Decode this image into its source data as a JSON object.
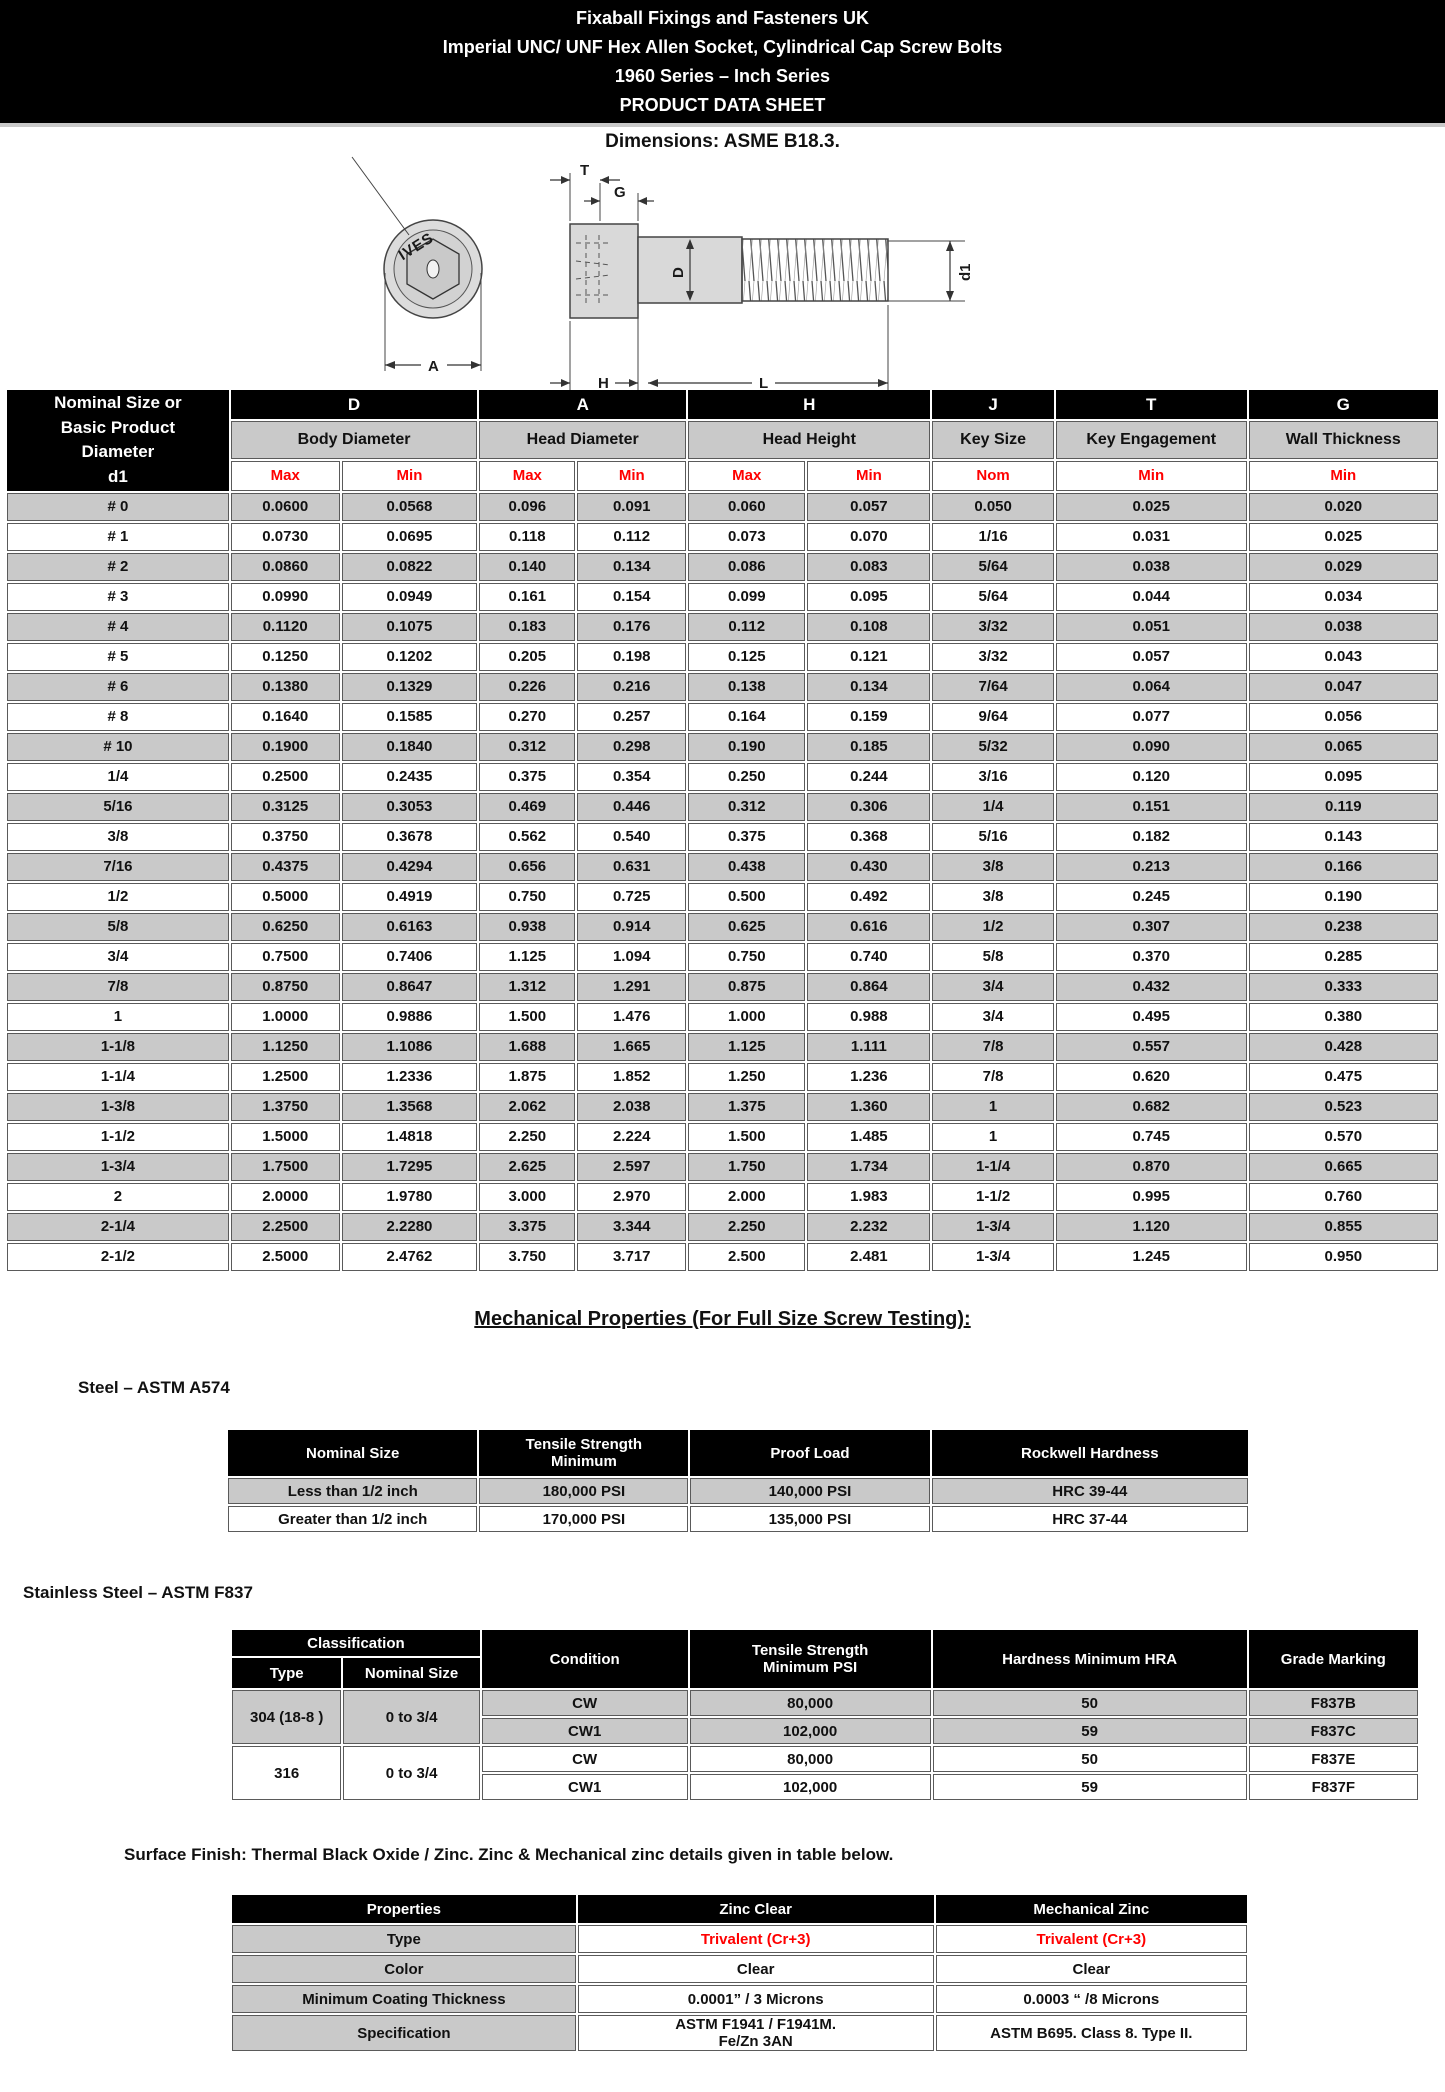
{
  "banner": {
    "line1": "Fixaball Fixings and Fasteners UK",
    "line2": "Imperial UNC/ UNF Hex Allen Socket, Cylindrical Cap Screw Bolts",
    "line3": "1960 Series – Inch Series",
    "line4": "PRODUCT DATA SHEET"
  },
  "dimensions_note": "Dimensions: ASME B18.3.",
  "drawing": {
    "labels": {
      "T": "T",
      "G": "G",
      "A": "A",
      "H": "H",
      "L": "L",
      "D": "D",
      "d1": "d1",
      "stamp": "IVES"
    }
  },
  "main_table": {
    "corner": "Nominal Size or\nBasic Product\nDiameter\nd1",
    "groups": [
      {
        "letter": "D",
        "label": "Body Diameter"
      },
      {
        "letter": "A",
        "label": "Head Diameter"
      },
      {
        "letter": "H",
        "label": "Head Height"
      },
      {
        "letter": "J",
        "label": "Key Size"
      },
      {
        "letter": "T",
        "label": "Key Engagement"
      },
      {
        "letter": "G",
        "label": "Wall Thickness"
      }
    ],
    "subcols": [
      "Max",
      "Min",
      "Max",
      "Min",
      "Max",
      "Min",
      "Nom",
      "Min",
      "Min"
    ],
    "rows": [
      [
        "# 0",
        "0.0600",
        "0.0568",
        "0.096",
        "0.091",
        "0.060",
        "0.057",
        "0.050",
        "0.025",
        "0.020"
      ],
      [
        "# 1",
        "0.0730",
        "0.0695",
        "0.118",
        "0.112",
        "0.073",
        "0.070",
        "1/16",
        "0.031",
        "0.025"
      ],
      [
        "# 2",
        "0.0860",
        "0.0822",
        "0.140",
        "0.134",
        "0.086",
        "0.083",
        "5/64",
        "0.038",
        "0.029"
      ],
      [
        "# 3",
        "0.0990",
        "0.0949",
        "0.161",
        "0.154",
        "0.099",
        "0.095",
        "5/64",
        "0.044",
        "0.034"
      ],
      [
        "# 4",
        "0.1120",
        "0.1075",
        "0.183",
        "0.176",
        "0.112",
        "0.108",
        "3/32",
        "0.051",
        "0.038"
      ],
      [
        "# 5",
        "0.1250",
        "0.1202",
        "0.205",
        "0.198",
        "0.125",
        "0.121",
        "3/32",
        "0.057",
        "0.043"
      ],
      [
        "# 6",
        "0.1380",
        "0.1329",
        "0.226",
        "0.216",
        "0.138",
        "0.134",
        "7/64",
        "0.064",
        "0.047"
      ],
      [
        "# 8",
        "0.1640",
        "0.1585",
        "0.270",
        "0.257",
        "0.164",
        "0.159",
        "9/64",
        "0.077",
        "0.056"
      ],
      [
        "# 10",
        "0.1900",
        "0.1840",
        "0.312",
        "0.298",
        "0.190",
        "0.185",
        "5/32",
        "0.090",
        "0.065"
      ],
      [
        "1/4",
        "0.2500",
        "0.2435",
        "0.375",
        "0.354",
        "0.250",
        "0.244",
        "3/16",
        "0.120",
        "0.095"
      ],
      [
        "5/16",
        "0.3125",
        "0.3053",
        "0.469",
        "0.446",
        "0.312",
        "0.306",
        "1/4",
        "0.151",
        "0.119"
      ],
      [
        "3/8",
        "0.3750",
        "0.3678",
        "0.562",
        "0.540",
        "0.375",
        "0.368",
        "5/16",
        "0.182",
        "0.143"
      ],
      [
        "7/16",
        "0.4375",
        "0.4294",
        "0.656",
        "0.631",
        "0.438",
        "0.430",
        "3/8",
        "0.213",
        "0.166"
      ],
      [
        "1/2",
        "0.5000",
        "0.4919",
        "0.750",
        "0.725",
        "0.500",
        "0.492",
        "3/8",
        "0.245",
        "0.190"
      ],
      [
        "5/8",
        "0.6250",
        "0.6163",
        "0.938",
        "0.914",
        "0.625",
        "0.616",
        "1/2",
        "0.307",
        "0.238"
      ],
      [
        "3/4",
        "0.7500",
        "0.7406",
        "1.125",
        "1.094",
        "0.750",
        "0.740",
        "5/8",
        "0.370",
        "0.285"
      ],
      [
        "7/8",
        "0.8750",
        "0.8647",
        "1.312",
        "1.291",
        "0.875",
        "0.864",
        "3/4",
        "0.432",
        "0.333"
      ],
      [
        "1",
        "1.0000",
        "0.9886",
        "1.500",
        "1.476",
        "1.000",
        "0.988",
        "3/4",
        "0.495",
        "0.380"
      ],
      [
        "1-1/8",
        "1.1250",
        "1.1086",
        "1.688",
        "1.665",
        "1.125",
        "1.111",
        "7/8",
        "0.557",
        "0.428"
      ],
      [
        "1-1/4",
        "1.2500",
        "1.2336",
        "1.875",
        "1.852",
        "1.250",
        "1.236",
        "7/8",
        "0.620",
        "0.475"
      ],
      [
        "1-3/8",
        "1.3750",
        "1.3568",
        "2.062",
        "2.038",
        "1.375",
        "1.360",
        "1",
        "0.682",
        "0.523"
      ],
      [
        "1-1/2",
        "1.5000",
        "1.4818",
        "2.250",
        "2.224",
        "1.500",
        "1.485",
        "1",
        "0.745",
        "0.570"
      ],
      [
        "1-3/4",
        "1.7500",
        "1.7295",
        "2.625",
        "2.597",
        "1.750",
        "1.734",
        "1-1/4",
        "0.870",
        "0.665"
      ],
      [
        "2",
        "2.0000",
        "1.9780",
        "3.000",
        "2.970",
        "2.000",
        "1.983",
        "1-1/2",
        "0.995",
        "0.760"
      ],
      [
        "2-1/4",
        "2.2500",
        "2.2280",
        "3.375",
        "3.344",
        "2.250",
        "2.232",
        "1-3/4",
        "1.120",
        "0.855"
      ],
      [
        "2-1/2",
        "2.5000",
        "2.4762",
        "3.750",
        "3.717",
        "2.500",
        "2.481",
        "1-3/4",
        "1.245",
        "0.950"
      ]
    ]
  },
  "mech_section": {
    "title": "Mechanical Properties (For Full Size Screw Testing):",
    "steel_label": "Steel – ASTM A574",
    "stainless_label": "Stainless Steel – ASTM F837",
    "surface_label": "Surface Finish: Thermal Black Oxide / Zinc. Zinc & Mechanical zinc details given in table below."
  },
  "steel_table": {
    "headers": [
      "Nominal Size",
      "Tensile Strength\nMinimum",
      "Proof Load",
      "Rockwell Hardness"
    ],
    "rows": [
      [
        "Less than 1/2 inch",
        "180,000 PSI",
        "140,000 PSI",
        "HRC 39-44"
      ],
      [
        "Greater than 1/2 inch",
        "170,000 PSI",
        "135,000 PSI",
        "HRC 37-44"
      ]
    ]
  },
  "ss_table": {
    "classification_label": "Classification",
    "sub_headers": [
      "Type",
      "Nominal Size"
    ],
    "headers": [
      "Condition",
      "Tensile Strength\nMinimum PSI",
      "Hardness Minimum HRA",
      "Grade Marking"
    ],
    "rows": [
      {
        "cells": [
          {
            "t": "304 (18-8 )",
            "rs": 2
          },
          {
            "t": "0 to 3/4",
            "rs": 2
          },
          "CW",
          "80,000",
          "50",
          "F837B"
        ]
      },
      {
        "cells": [
          "CW1",
          "102,000",
          "59",
          "F837C"
        ]
      },
      {
        "cells": [
          {
            "t": "316",
            "rs": 2
          },
          {
            "t": "0 to 3/4",
            "rs": 2
          },
          "CW",
          "80,000",
          "50",
          "F837E"
        ]
      },
      {
        "cells": [
          "CW1",
          "102,000",
          "59",
          "F837F"
        ]
      }
    ]
  },
  "surface_table": {
    "headers": [
      "Properties",
      "Zinc Clear",
      "Mechanical Zinc"
    ],
    "rows": [
      [
        {
          "t": "Type",
          "c": "lbl"
        },
        {
          "t": "Trivalent (Cr+3)",
          "c": "red"
        },
        {
          "t": "Trivalent (Cr+3)",
          "c": "red"
        }
      ],
      [
        {
          "t": "Color",
          "c": "lbl"
        },
        "Clear",
        "Clear"
      ],
      [
        {
          "t": "Minimum Coating Thickness",
          "c": "lbl"
        },
        "0.0001” / 3 Microns",
        "0.0003 “ /8 Microns"
      ],
      [
        {
          "t": "Specification",
          "c": "lbl"
        },
        "ASTM F1941 / F1941M.\nFe/Zn 3AN",
        "ASTM B695. Class 8. Type II."
      ]
    ]
  },
  "colors": {
    "accent_red": "#ff0000",
    "header_black": "#000000",
    "row_gray": "#c9c9c9"
  }
}
